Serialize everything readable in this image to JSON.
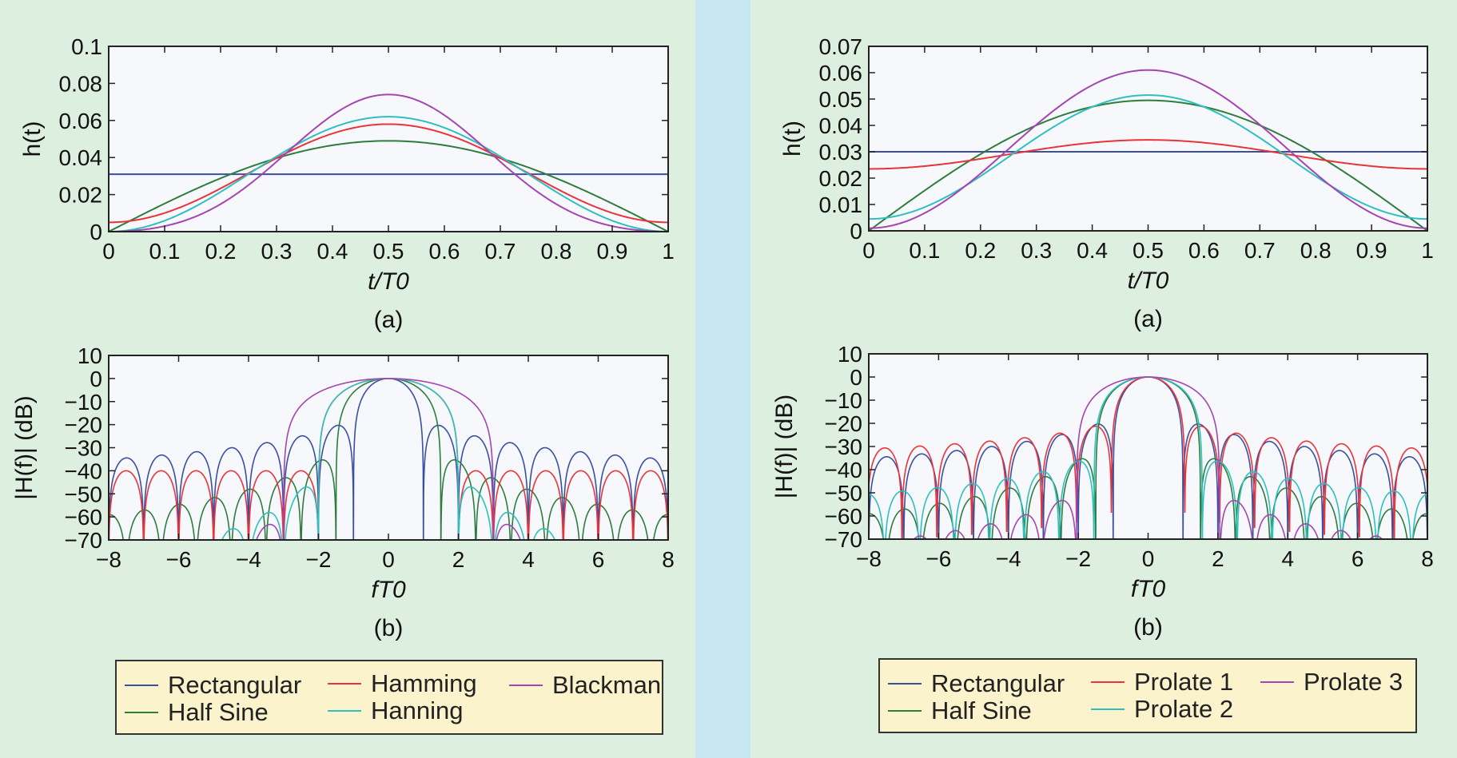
{
  "colors": {
    "Rectangular": "#3b4fa3",
    "Half Sine": "#2e7d3c",
    "Hamming": "#e8343a",
    "Hanning": "#2fbfbf",
    "Blackman": "#a445b0",
    "Prolate 1": "#e8343a",
    "Prolate 2": "#2fbfbf",
    "Prolate 3": "#a445b0"
  },
  "panels": [
    {
      "legend": {
        "row1": [
          "Rectangular",
          "Hamming",
          "Blackman"
        ],
        "row2": [
          "Half Sine",
          "Hanning"
        ]
      }
    },
    {
      "legend": {
        "row1": [
          "Rectangular",
          "Prolate 1",
          "Prolate 3"
        ],
        "row2": [
          "Half Sine",
          "Prolate 2"
        ]
      }
    }
  ],
  "chart_data": [
    {
      "type": "line",
      "panel": "left",
      "caption": "(a)",
      "xlabel": "t/T0",
      "ylabel": "h(t)",
      "xlim": [
        0,
        1
      ],
      "ylim": [
        0,
        0.1
      ],
      "x_ticks": [
        "0",
        "0.1",
        "0.2",
        "0.3",
        "0.4",
        "0.5",
        "0.6",
        "0.7",
        "0.8",
        "0.9",
        "1"
      ],
      "y_ticks": [
        "0",
        "0.02",
        "0.04",
        "0.06",
        "0.08",
        "0.1"
      ],
      "grid": false,
      "series": [
        {
          "name": "Rectangular",
          "shape": "constant",
          "peak": 0.031
        },
        {
          "name": "Half Sine",
          "shape": "sine",
          "peak": 0.049
        },
        {
          "name": "Hamming",
          "shape": "raised-cosine",
          "peak": 0.058,
          "edge": 0.005
        },
        {
          "name": "Hanning",
          "shape": "raised-cosine",
          "peak": 0.062,
          "edge": 0.0
        },
        {
          "name": "Blackman",
          "shape": "blackman",
          "peak": 0.074
        }
      ]
    },
    {
      "type": "line",
      "panel": "left",
      "caption": "(b)",
      "xlabel": "fT0",
      "ylabel": "|H(f)| (dB)",
      "xlim": [
        -8,
        8
      ],
      "ylim": [
        -70,
        10
      ],
      "x_ticks": [
        "−8",
        "−6",
        "−4",
        "−2",
        "0",
        "2",
        "4",
        "6",
        "8"
      ],
      "y_ticks": [
        "10",
        "0",
        "−10",
        "−20",
        "−30",
        "−40",
        "−50",
        "−60",
        "−70"
      ],
      "grid": false,
      "series": [
        {
          "name": "Rectangular",
          "mainlobe_halfwidth": 1,
          "sidelobe_db": -17,
          "sidelobe_rolloff": 6
        },
        {
          "name": "Half Sine",
          "mainlobe_halfwidth": 1.5,
          "sidelobe_db": -30,
          "sidelobe_rolloff": 10
        },
        {
          "name": "Hamming",
          "mainlobe_halfwidth": 2,
          "sidelobe_db": -40,
          "sidelobe_rolloff": 0
        },
        {
          "name": "Hanning",
          "mainlobe_halfwidth": 2,
          "sidelobe_db": -40,
          "sidelobe_rolloff": 14
        },
        {
          "name": "Blackman",
          "mainlobe_halfwidth": 3,
          "sidelobe_db": -58,
          "sidelobe_rolloff": 10
        }
      ]
    },
    {
      "type": "line",
      "panel": "right",
      "caption": "(a)",
      "xlabel": "t/T0",
      "ylabel": "h(t)",
      "xlim": [
        0,
        1
      ],
      "ylim": [
        0,
        0.07
      ],
      "x_ticks": [
        "0",
        "0.1",
        "0.2",
        "0.3",
        "0.4",
        "0.5",
        "0.6",
        "0.7",
        "0.8",
        "0.9",
        "1"
      ],
      "y_ticks": [
        "0",
        "0.01",
        "0.02",
        "0.03",
        "0.04",
        "0.05",
        "0.06",
        "0.07"
      ],
      "grid": false,
      "series": [
        {
          "name": "Rectangular",
          "shape": "constant",
          "peak": 0.03
        },
        {
          "name": "Half Sine",
          "shape": "sine",
          "peak": 0.0495
        },
        {
          "name": "Prolate 1",
          "shape": "raised-cosine",
          "peak": 0.0345,
          "edge": 0.0235
        },
        {
          "name": "Prolate 2",
          "shape": "raised-cosine",
          "peak": 0.0515,
          "edge": 0.0045
        },
        {
          "name": "Prolate 3",
          "shape": "raised-cosine",
          "peak": 0.061,
          "edge": 0.001
        }
      ]
    },
    {
      "type": "line",
      "panel": "right",
      "caption": "(b)",
      "xlabel": "fT0",
      "ylabel": "|H(f)| (dB)",
      "xlim": [
        -8,
        8
      ],
      "ylim": [
        -70,
        10
      ],
      "x_ticks": [
        "−8",
        "−6",
        "−4",
        "−2",
        "0",
        "2",
        "4",
        "6",
        "8"
      ],
      "y_ticks": [
        "10",
        "0",
        "−10",
        "−20",
        "−30",
        "−40",
        "−50",
        "−60",
        "−70"
      ],
      "grid": false,
      "series": [
        {
          "name": "Rectangular",
          "mainlobe_halfwidth": 1,
          "sidelobe_db": -17,
          "sidelobe_rolloff": 6
        },
        {
          "name": "Half Sine",
          "mainlobe_halfwidth": 1.5,
          "sidelobe_db": -30,
          "sidelobe_rolloff": 10
        },
        {
          "name": "Prolate 1",
          "mainlobe_halfwidth": 1.05,
          "sidelobe_db": -19,
          "sidelobe_rolloff": 4
        },
        {
          "name": "Prolate 2",
          "mainlobe_halfwidth": 1.55,
          "sidelobe_db": -33,
          "sidelobe_rolloff": 6
        },
        {
          "name": "Prolate 3",
          "mainlobe_halfwidth": 2.05,
          "sidelobe_db": -49,
          "sidelobe_rolloff": 8
        }
      ]
    }
  ]
}
